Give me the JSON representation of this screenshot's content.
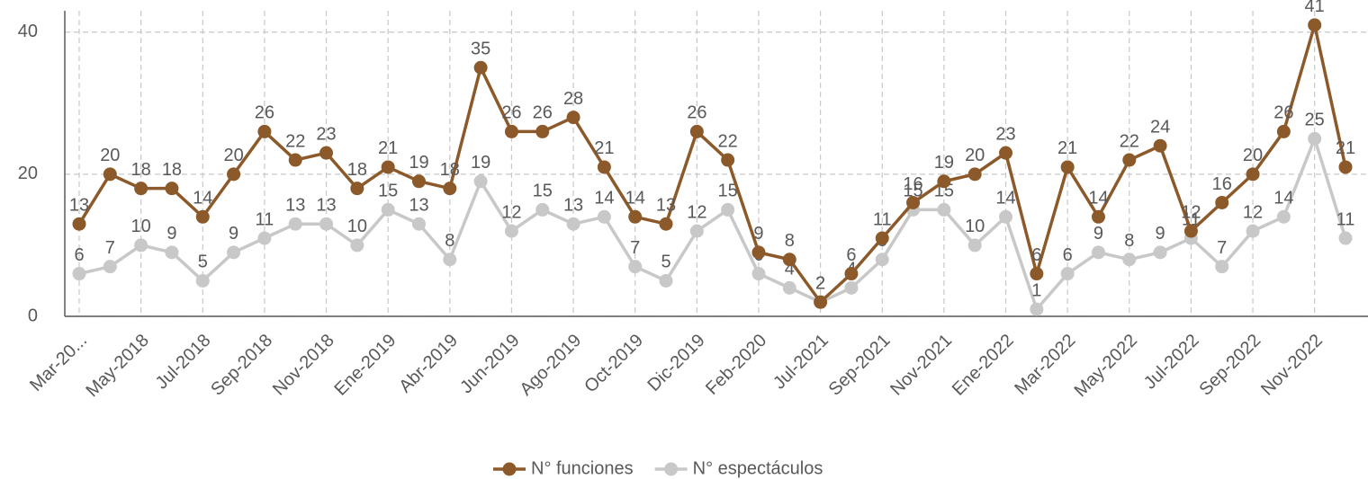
{
  "chart_data": {
    "type": "line",
    "categories": [
      "Mar-20...",
      null,
      "May-2018",
      null,
      "Jul-2018",
      null,
      "Sep-2018",
      null,
      "Nov-2018",
      null,
      "Ene-2019",
      null,
      "Abr-2019",
      null,
      "Jun-2019",
      null,
      "Ago-2019",
      null,
      "Oct-2019",
      null,
      "Dic-2019",
      null,
      "Feb-2020",
      null,
      "Jul-2021",
      null,
      "Sep-2021",
      null,
      "Nov-2021",
      null,
      "Ene-2022",
      null,
      "Mar-2022",
      null,
      "May-2022",
      null,
      "Jul-2022",
      null,
      "Sep-2022",
      null,
      "Nov-2022",
      null
    ],
    "series": [
      {
        "name": "N° funciones",
        "color": "#8c5a2a",
        "values": [
          13,
          20,
          18,
          18,
          14,
          20,
          26,
          22,
          23,
          18,
          21,
          19,
          18,
          35,
          26,
          26,
          28,
          21,
          14,
          13,
          26,
          22,
          9,
          8,
          2,
          6,
          11,
          16,
          19,
          20,
          23,
          6,
          21,
          14,
          22,
          24,
          12,
          16,
          20,
          26,
          41,
          21
        ]
      },
      {
        "name": "N° espectáculos",
        "color": "#c8c8c8",
        "values": [
          6,
          7,
          10,
          9,
          5,
          9,
          11,
          13,
          13,
          10,
          15,
          13,
          8,
          19,
          12,
          15,
          13,
          14,
          7,
          5,
          12,
          15,
          6,
          4,
          2,
          4,
          8,
          15,
          15,
          10,
          14,
          1,
          6,
          9,
          8,
          9,
          11,
          7,
          12,
          14,
          25,
          11
        ]
      }
    ],
    "ylim": [
      0,
      43
    ],
    "yticks": [
      0,
      20,
      40
    ],
    "grid": true,
    "legend": "bottom"
  }
}
